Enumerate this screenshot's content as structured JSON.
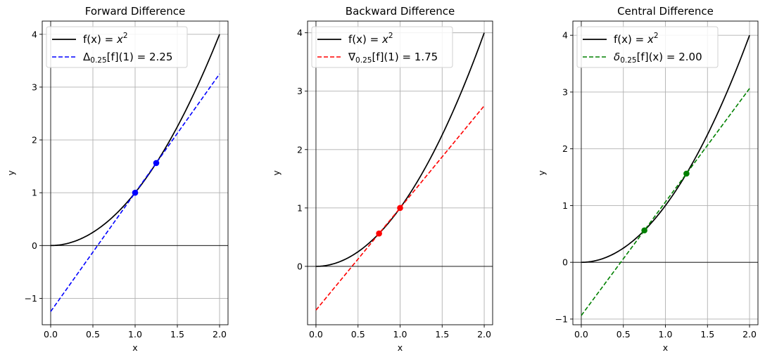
{
  "chart_data": [
    {
      "type": "line",
      "title": "Forward Difference",
      "xlabel": "x",
      "ylabel": "y",
      "xlim": [
        -0.1,
        2.1
      ],
      "ylim": [
        -1.5,
        4.25
      ],
      "xticks": [
        "0.0",
        "0.5",
        "1.0",
        "1.5",
        "2.0"
      ],
      "xtick_values": [
        0,
        0.5,
        1,
        1.5,
        2
      ],
      "yticks": [
        "−1",
        "0",
        "1",
        "2",
        "3",
        "4"
      ],
      "ytick_values": [
        -1,
        0,
        1,
        2,
        3,
        4
      ],
      "grid": true,
      "legend_position": "top-left",
      "curve": {
        "label": "f(x) = x²",
        "color": "#000000",
        "function": "x^2",
        "x_range": [
          0,
          2
        ]
      },
      "secant": {
        "label": "Δ₀.₂₅[f](1) = 2.25",
        "label_main": "Δ",
        "label_sub": "0.25",
        "label_rest": "[f](1) = 2.25",
        "color": "#0000ff",
        "slope": 2.25,
        "intercept": -1.25,
        "x_range": [
          0,
          2
        ]
      },
      "points": [
        {
          "x": 1.0,
          "y": 1.0
        },
        {
          "x": 1.25,
          "y": 1.5625
        }
      ],
      "point_color": "#0000ff"
    },
    {
      "type": "line",
      "title": "Backward Difference",
      "xlabel": "x",
      "ylabel": "y",
      "xlim": [
        -0.1,
        2.1
      ],
      "ylim": [
        -1.0,
        4.2
      ],
      "xticks": [
        "0.0",
        "0.5",
        "1.0",
        "1.5",
        "2.0"
      ],
      "xtick_values": [
        0,
        0.5,
        1,
        1.5,
        2
      ],
      "yticks": [
        "0",
        "1",
        "2",
        "3",
        "4"
      ],
      "ytick_values": [
        0,
        1,
        2,
        3,
        4
      ],
      "grid": true,
      "legend_position": "top-left",
      "curve": {
        "label": "f(x) = x²",
        "color": "#000000",
        "function": "x^2",
        "x_range": [
          0,
          2
        ]
      },
      "secant": {
        "label": "∇₀.₂₅[f](1) = 1.75",
        "label_main": "∇",
        "label_sub": "0.25",
        "label_rest": "[f](1) = 1.75",
        "color": "#ff0000",
        "slope": 1.75,
        "intercept": -0.75,
        "x_range": [
          0,
          2
        ]
      },
      "points": [
        {
          "x": 0.75,
          "y": 0.5625
        },
        {
          "x": 1.0,
          "y": 1.0
        }
      ],
      "point_color": "#ff0000"
    },
    {
      "type": "line",
      "title": "Central Difference",
      "xlabel": "x",
      "ylabel": "y",
      "xlim": [
        -0.1,
        2.1
      ],
      "ylim": [
        -1.1,
        4.25
      ],
      "xticks": [
        "0.0",
        "0.5",
        "1.0",
        "1.5",
        "2.0"
      ],
      "xtick_values": [
        0,
        0.5,
        1,
        1.5,
        2
      ],
      "yticks": [
        "−1",
        "0",
        "1",
        "2",
        "3",
        "4"
      ],
      "ytick_values": [
        -1,
        0,
        1,
        2,
        3,
        4
      ],
      "grid": true,
      "legend_position": "top-left",
      "curve": {
        "label": "f(x) = x²",
        "color": "#000000",
        "function": "x^2",
        "x_range": [
          0,
          2
        ]
      },
      "secant": {
        "label": "δ₀.₂₅[f](x) = 2.00",
        "label_main": "δ",
        "label_sub": "0.25",
        "label_rest": "[f](x) = 2.00",
        "color": "#008000",
        "slope": 2.0,
        "intercept": -0.9375,
        "x_range": [
          0,
          2
        ]
      },
      "points": [
        {
          "x": 0.75,
          "y": 0.5625
        },
        {
          "x": 1.25,
          "y": 1.5625
        }
      ],
      "point_color": "#008000"
    }
  ]
}
